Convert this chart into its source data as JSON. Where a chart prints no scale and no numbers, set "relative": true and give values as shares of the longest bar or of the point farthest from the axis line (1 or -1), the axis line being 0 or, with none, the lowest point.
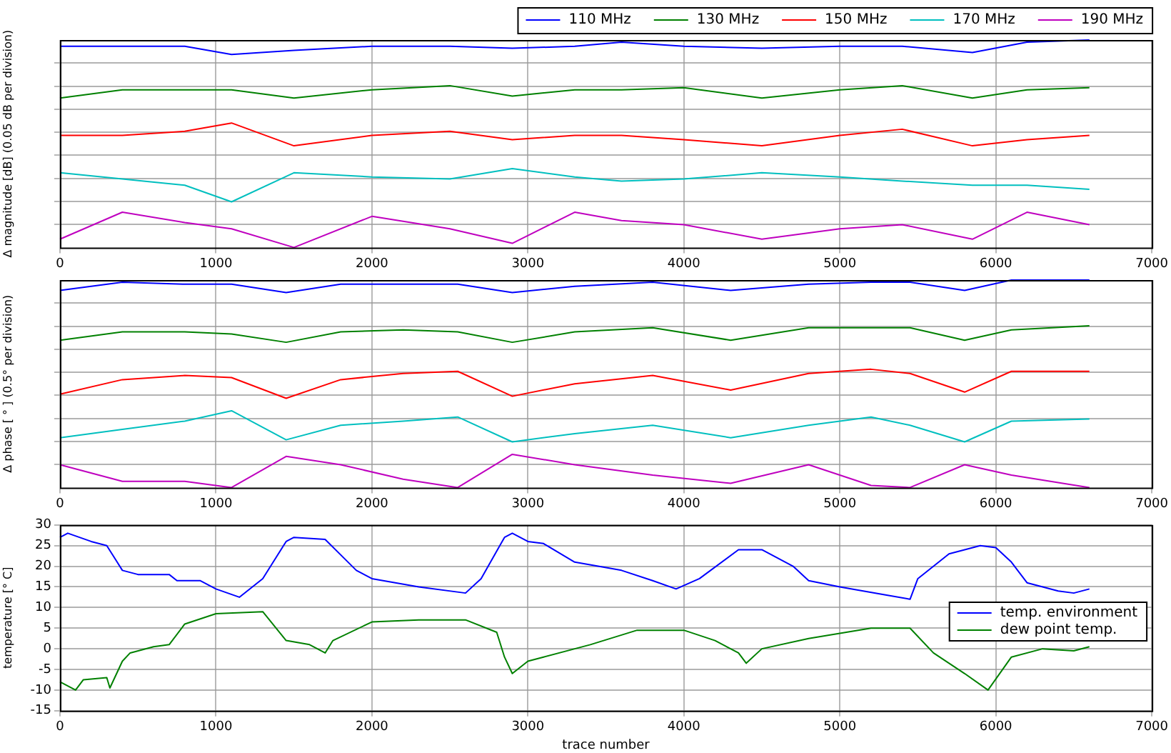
{
  "chart_data": [
    {
      "type": "line",
      "relative": true,
      "ylabel": "Δ magnitude [dB] (0.05 dB per division)",
      "grid": true,
      "legend": "top right",
      "xlim": [
        0,
        7000
      ],
      "xticks": [
        0,
        1000,
        2000,
        3000,
        4000,
        5000,
        6000,
        7000
      ],
      "x": [
        0,
        400,
        800,
        1100,
        1500,
        2000,
        2500,
        2900,
        3300,
        3600,
        4000,
        4500,
        5000,
        5400,
        5850,
        6200,
        6600
      ],
      "series": [
        {
          "name": "110 MHz",
          "color": "#0000ff",
          "values": [
            0.97,
            0.97,
            0.97,
            0.93,
            0.95,
            0.97,
            0.97,
            0.96,
            0.97,
            0.99,
            0.97,
            0.96,
            0.97,
            0.97,
            0.94,
            0.99,
            1
          ]
        },
        {
          "name": "130 MHz",
          "color": "#008000",
          "values": [
            0.72,
            0.76,
            0.76,
            0.76,
            0.72,
            0.76,
            0.78,
            0.73,
            0.76,
            0.76,
            0.77,
            0.72,
            0.76,
            0.78,
            0.72,
            0.76,
            0.77
          ]
        },
        {
          "name": "150 MHz",
          "color": "#ff0000",
          "values": [
            0.54,
            0.54,
            0.56,
            0.6,
            0.49,
            0.54,
            0.56,
            0.52,
            0.54,
            0.54,
            0.52,
            0.49,
            0.54,
            0.57,
            0.49,
            0.52,
            0.54
          ]
        },
        {
          "name": "170 MHz",
          "color": "#00bfbf",
          "values": [
            0.36,
            0.33,
            0.3,
            0.22,
            0.36,
            0.34,
            0.33,
            0.38,
            0.34,
            0.32,
            0.33,
            0.36,
            0.34,
            0.32,
            0.3,
            0.3,
            0.28
          ]
        },
        {
          "name": "190 MHz",
          "color": "#bf00bf",
          "values": [
            0.04,
            0.17,
            0.12,
            0.09,
            0,
            0.15,
            0.09,
            0.02,
            0.17,
            0.13,
            0.11,
            0.04,
            0.09,
            0.11,
            0.04,
            0.17,
            0.11
          ]
        }
      ]
    },
    {
      "type": "line",
      "relative": true,
      "ylabel": "Δ phase [ ° ] (0.5° per division)",
      "grid": true,
      "xlim": [
        0,
        7000
      ],
      "xticks": [
        0,
        1000,
        2000,
        3000,
        4000,
        5000,
        6000,
        7000
      ],
      "x": [
        0,
        400,
        800,
        1100,
        1450,
        1800,
        2200,
        2550,
        2900,
        3300,
        3800,
        4300,
        4800,
        5200,
        5450,
        5800,
        6100,
        6600
      ],
      "series": [
        {
          "color": "#0000ff",
          "values": [
            0.95,
            0.99,
            0.98,
            0.98,
            0.94,
            0.98,
            0.98,
            0.98,
            0.94,
            0.97,
            0.99,
            0.95,
            0.98,
            0.99,
            0.99,
            0.95,
            1,
            1
          ]
        },
        {
          "color": "#008000",
          "values": [
            0.71,
            0.75,
            0.75,
            0.74,
            0.7,
            0.75,
            0.76,
            0.75,
            0.7,
            0.75,
            0.77,
            0.71,
            0.77,
            0.77,
            0.77,
            0.71,
            0.76,
            0.78
          ]
        },
        {
          "color": "#ff0000",
          "values": [
            0.45,
            0.52,
            0.54,
            0.53,
            0.43,
            0.52,
            0.55,
            0.56,
            0.44,
            0.5,
            0.54,
            0.47,
            0.55,
            0.57,
            0.55,
            0.46,
            0.56,
            0.56
          ]
        },
        {
          "color": "#00bfbf",
          "values": [
            0.24,
            0.28,
            0.32,
            0.37,
            0.23,
            0.3,
            0.32,
            0.34,
            0.22,
            0.26,
            0.3,
            0.24,
            0.3,
            0.34,
            0.3,
            0.22,
            0.32,
            0.33
          ]
        },
        {
          "color": "#bf00bf",
          "values": [
            0.11,
            0.03,
            0.03,
            0,
            0.15,
            0.11,
            0.04,
            0,
            0.16,
            0.11,
            0.06,
            0.02,
            0.11,
            0.01,
            0,
            0.11,
            0.06,
            0
          ]
        }
      ]
    },
    {
      "type": "line",
      "xlabel": "trace number",
      "ylabel": "temperature [° C]",
      "grid": true,
      "legend": "right",
      "xlim": [
        0,
        7000
      ],
      "xticks": [
        0,
        1000,
        2000,
        3000,
        4000,
        5000,
        6000,
        7000
      ],
      "ylim": [
        -15,
        30
      ],
      "yticks": [
        -15,
        -10,
        -5,
        0,
        5,
        10,
        15,
        20,
        25,
        30
      ],
      "series": [
        {
          "name": "temp. environment",
          "color": "#0000ff",
          "x": [
            0,
            50,
            200,
            300,
            350,
            400,
            500,
            700,
            750,
            900,
            1000,
            1150,
            1300,
            1450,
            1500,
            1700,
            1900,
            2000,
            2300,
            2600,
            2700,
            2850,
            2900,
            3000,
            3100,
            3300,
            3600,
            3800,
            3950,
            4100,
            4350,
            4500,
            4700,
            4800,
            5000,
            5300,
            5450,
            5500,
            5700,
            5900,
            6000,
            6100,
            6200,
            6400,
            6500,
            6600
          ],
          "values": [
            27,
            28,
            26,
            25,
            22,
            19,
            18,
            18,
            16.5,
            16.5,
            14.5,
            12.5,
            17,
            26,
            27,
            26.5,
            19,
            17,
            15,
            13.5,
            17,
            27,
            28,
            26,
            25.5,
            21,
            19,
            16.5,
            14.5,
            17,
            24,
            24,
            20,
            16.5,
            15,
            13,
            12,
            17,
            23,
            25,
            24.5,
            21,
            16,
            14,
            13.5,
            14.5
          ]
        },
        {
          "name": "dew point temp.",
          "color": "#008000",
          "x": [
            0,
            100,
            150,
            300,
            320,
            400,
            450,
            600,
            700,
            800,
            1000,
            1300,
            1450,
            1600,
            1700,
            1750,
            2000,
            2300,
            2600,
            2800,
            2850,
            2900,
            3000,
            3100,
            3400,
            3700,
            4000,
            4200,
            4350,
            4400,
            4500,
            4800,
            5200,
            5450,
            5600,
            5800,
            5950,
            6100,
            6300,
            6500,
            6600
          ],
          "values": [
            -8,
            -10,
            -7.5,
            -7,
            -9.5,
            -3,
            -1,
            0.5,
            1,
            6,
            8.5,
            9,
            2,
            1,
            -1,
            2,
            6.5,
            7,
            7,
            4,
            -2,
            -6,
            -3,
            -2,
            1,
            4.5,
            4.5,
            2,
            -1,
            -3.5,
            0,
            2.5,
            5,
            5,
            -1,
            -6,
            -10,
            -2,
            0,
            -0.5,
            0.5
          ]
        }
      ]
    }
  ]
}
